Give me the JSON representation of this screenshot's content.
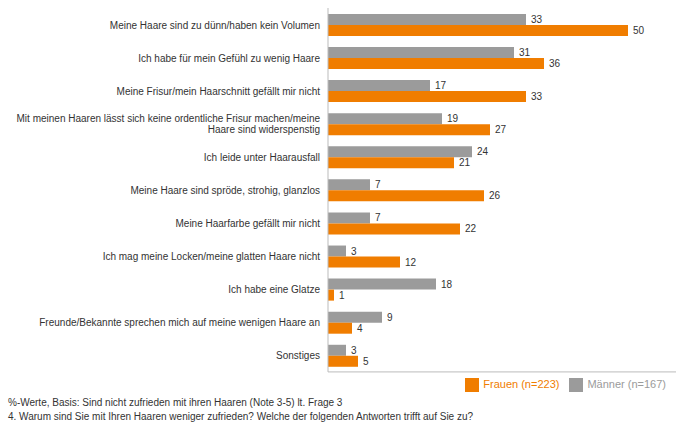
{
  "chart_data": {
    "type": "bar",
    "orientation": "horizontal",
    "categories": [
      "Meine Haare sind zu dünn/haben kein Volumen",
      "Ich habe für mein Gefühl zu wenig Haare",
      "Meine Frisur/mein Haarschnitt gefällt mir nicht",
      "Mit meinen Haaren lässt sich keine ordentliche Frisur machen/meine\nHaare sind widerspenstig",
      "Ich leide unter Haarausfall",
      "Meine Haare sind spröde, strohig, glanzlos",
      "Meine Haarfarbe gefällt mir nicht",
      "Ich mag meine Locken/meine glatten Haare nicht",
      "Ich habe eine Glatze",
      "Freunde/Bekannte sprechen mich auf meine wenigen Haare an",
      "Sonstiges"
    ],
    "series": [
      {
        "name": "Männer (n=167)",
        "color": "#9b9b9b",
        "values": [
          33,
          31,
          17,
          19,
          24,
          7,
          7,
          3,
          18,
          9,
          3
        ]
      },
      {
        "name": "Frauen (n=223)",
        "color": "#f07d00",
        "values": [
          50,
          36,
          33,
          27,
          21,
          26,
          22,
          12,
          1,
          4,
          5
        ]
      }
    ],
    "xlim": [
      0,
      58
    ],
    "data_labels": true,
    "tick_labels": "y",
    "grid": false,
    "legend": "lower right",
    "annotations": [
      "%-Werte, Basis: Sind nicht zufrieden mit ihren Haaren (Note 3-5) lt. Frage 3",
      "4. Warum sind Sie mit Ihren Haaren weniger zufrieden? Welche der folgenden Antworten trifft auf Sie zu?"
    ]
  }
}
